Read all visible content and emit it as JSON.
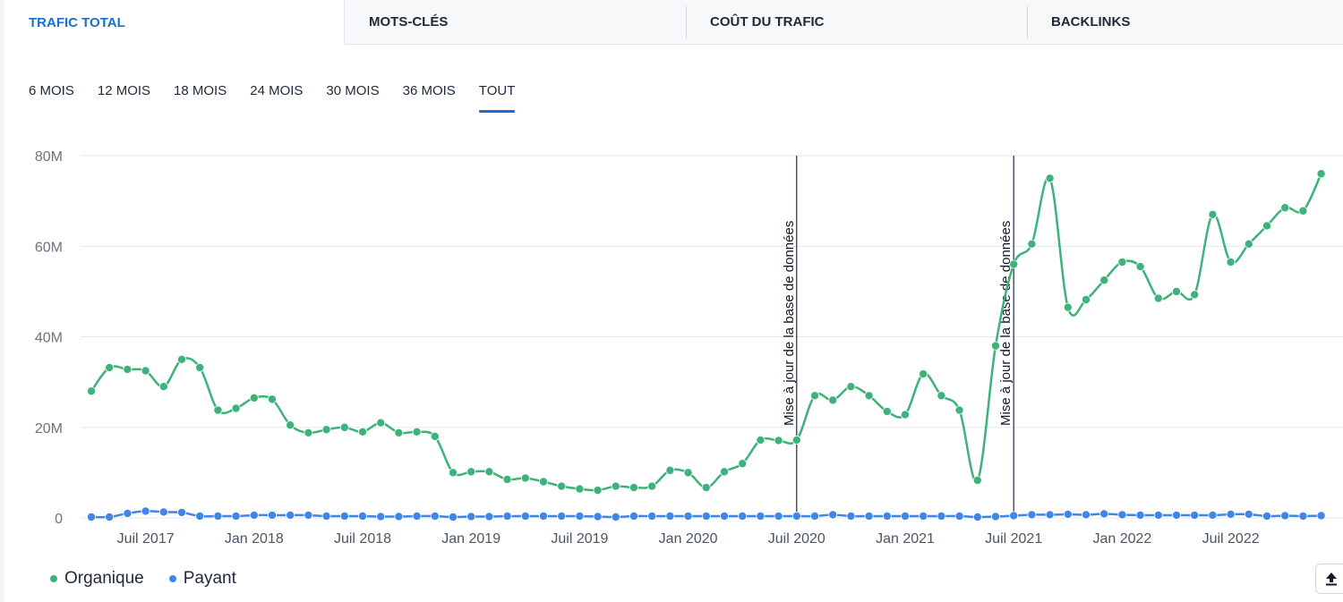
{
  "tabs": [
    {
      "label": "TRAFIC TOTAL"
    },
    {
      "label": "MOTS-CLÉS"
    },
    {
      "label": "COÛT DU TRAFIC"
    },
    {
      "label": "BACKLINKS"
    }
  ],
  "periods": [
    {
      "label": "6 MOIS"
    },
    {
      "label": "12 MOIS"
    },
    {
      "label": "18 MOIS"
    },
    {
      "label": "24 MOIS"
    },
    {
      "label": "30 MOIS"
    },
    {
      "label": "36 MOIS"
    },
    {
      "label": "TOUT"
    }
  ],
  "active_tab": "TRAFIC TOTAL",
  "active_period": "TOUT",
  "colors": {
    "organic": "#3db27a",
    "paid": "#3f86e8",
    "accent": "#1a6fd1",
    "annotation_line": "#1e2a4a"
  },
  "legend": {
    "organic": "Organique",
    "paid": "Payant"
  },
  "export_icon": "upload-icon",
  "chart_data": {
    "type": "line",
    "title": "",
    "xlabel": "",
    "ylabel": "",
    "x": [
      "2017-04",
      "2017-05",
      "2017-06",
      "2017-07",
      "2017-08",
      "2017-09",
      "2017-10",
      "2017-11",
      "2017-12",
      "2018-01",
      "2018-02",
      "2018-03",
      "2018-04",
      "2018-05",
      "2018-06",
      "2018-07",
      "2018-08",
      "2018-09",
      "2018-10",
      "2018-11",
      "2018-12",
      "2019-01",
      "2019-02",
      "2019-03",
      "2019-04",
      "2019-05",
      "2019-06",
      "2019-07",
      "2019-08",
      "2019-09",
      "2019-10",
      "2019-11",
      "2019-12",
      "2020-01",
      "2020-02",
      "2020-03",
      "2020-04",
      "2020-05",
      "2020-06",
      "2020-07",
      "2020-08",
      "2020-09",
      "2020-10",
      "2020-11",
      "2020-12",
      "2021-01",
      "2021-02",
      "2021-03",
      "2021-04",
      "2021-05",
      "2021-06",
      "2021-07",
      "2021-08",
      "2021-09",
      "2021-10",
      "2021-11",
      "2021-12",
      "2022-01",
      "2022-02",
      "2022-03",
      "2022-04",
      "2022-05",
      "2022-06",
      "2022-07",
      "2022-08",
      "2022-09",
      "2022-10",
      "2022-11",
      "2022-12"
    ],
    "series": [
      {
        "name": "Organique",
        "values": [
          28.0,
          33.2,
          32.8,
          32.5,
          29.0,
          35.0,
          33.2,
          23.8,
          24.2,
          26.5,
          26.2,
          20.5,
          18.8,
          19.5,
          20.0,
          19.0,
          21.0,
          18.8,
          19.0,
          18.0,
          10.0,
          10.2,
          10.2,
          8.5,
          8.8,
          8.0,
          7.0,
          6.4,
          6.1,
          7.0,
          6.7,
          7.0,
          10.5,
          10.0,
          6.7,
          10.2,
          12.0,
          17.2,
          17.1,
          17.2,
          27.0,
          26.0,
          29.0,
          27.0,
          23.5,
          22.8,
          31.8,
          27.0,
          23.8,
          8.3,
          38.0,
          56.0,
          60.5,
          75.0,
          46.5,
          48.2,
          52.5,
          56.5,
          55.5,
          48.5,
          50.0,
          49.3,
          67.0,
          56.5,
          60.5,
          64.5,
          68.5,
          67.8,
          76.0
        ]
      },
      {
        "name": "Payant",
        "values": [
          0.2,
          0.2,
          1.0,
          1.5,
          1.3,
          1.2,
          0.4,
          0.4,
          0.4,
          0.6,
          0.6,
          0.6,
          0.6,
          0.4,
          0.4,
          0.4,
          0.3,
          0.3,
          0.4,
          0.4,
          0.2,
          0.3,
          0.3,
          0.4,
          0.4,
          0.4,
          0.4,
          0.4,
          0.3,
          0.2,
          0.4,
          0.4,
          0.4,
          0.4,
          0.4,
          0.4,
          0.4,
          0.4,
          0.4,
          0.4,
          0.4,
          0.7,
          0.4,
          0.4,
          0.4,
          0.4,
          0.4,
          0.4,
          0.4,
          0.2,
          0.3,
          0.5,
          0.7,
          0.7,
          0.8,
          0.7,
          0.9,
          0.7,
          0.6,
          0.6,
          0.6,
          0.6,
          0.6,
          0.8,
          0.8,
          0.4,
          0.5,
          0.4,
          0.5
        ]
      }
    ],
    "y_unit": "M",
    "ylim": [
      0,
      80
    ],
    "y_ticks": [
      0,
      20,
      40,
      60,
      80
    ],
    "y_tick_labels": [
      "0",
      "20M",
      "40M",
      "60M",
      "80M"
    ],
    "x_tick_labels": [
      {
        "label": "Juil 2017",
        "date": "2017-07"
      },
      {
        "label": "Jan 2018",
        "date": "2018-01"
      },
      {
        "label": "Juil 2018",
        "date": "2018-07"
      },
      {
        "label": "Jan 2019",
        "date": "2019-01"
      },
      {
        "label": "Juil 2019",
        "date": "2019-07"
      },
      {
        "label": "Jan 2020",
        "date": "2020-01"
      },
      {
        "label": "Juil 2020",
        "date": "2020-07"
      },
      {
        "label": "Jan 2021",
        "date": "2021-01"
      },
      {
        "label": "Juil 2021",
        "date": "2021-07"
      },
      {
        "label": "Jan 2022",
        "date": "2022-01"
      },
      {
        "label": "Juil 2022",
        "date": "2022-07"
      }
    ],
    "annotations": [
      {
        "date": "2020-07",
        "text": "Mise à jour de la base de données"
      },
      {
        "date": "2021-07",
        "text": "Mise à jour de la base de données"
      }
    ],
    "grid": true,
    "legend_position": "bottom-left"
  }
}
